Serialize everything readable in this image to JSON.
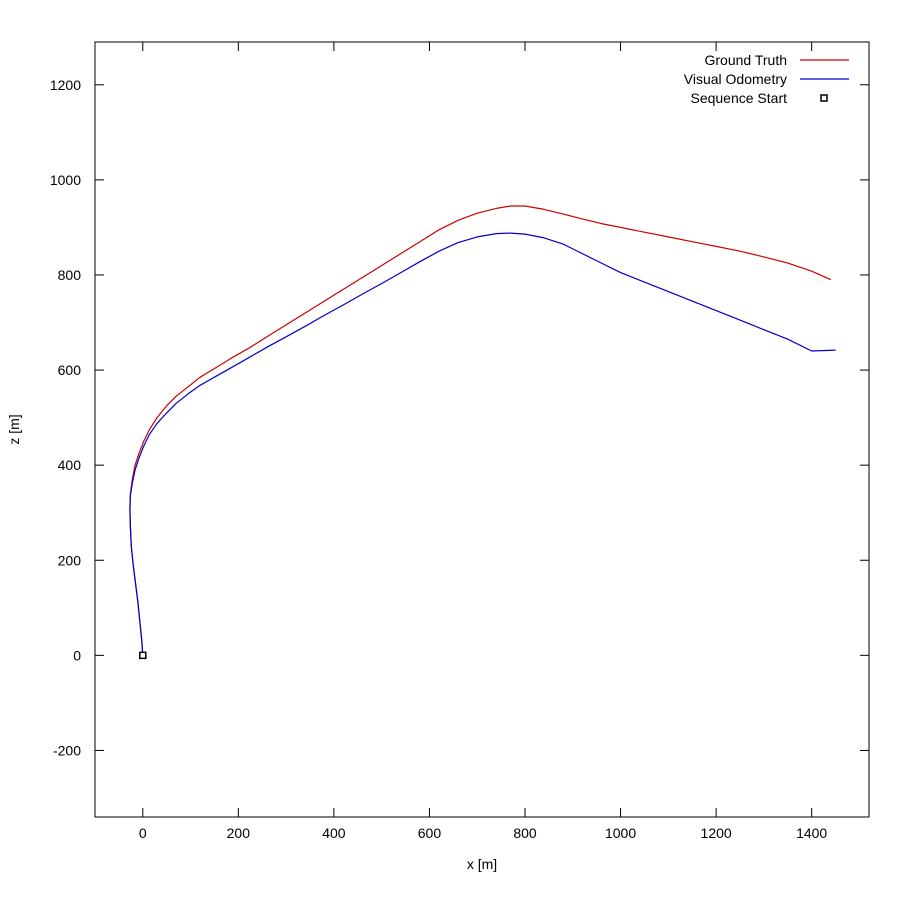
{
  "chart_data": {
    "type": "line",
    "title": "",
    "xlabel": "x [m]",
    "ylabel": "z [m]",
    "xlim": [
      -100,
      1520
    ],
    "ylim": [
      -340,
      1290
    ],
    "x_ticks": [
      0,
      200,
      400,
      600,
      800,
      1000,
      1200,
      1400
    ],
    "y_ticks": [
      -200,
      0,
      200,
      400,
      600,
      800,
      1000,
      1200
    ],
    "grid": false,
    "legend_position": "top-right",
    "series": [
      {
        "name": "Ground Truth",
        "color": "#cc0000",
        "x": [
          0,
          -2,
          -6,
          -10,
          -15,
          -20,
          -24,
          -26,
          -27,
          -26,
          -22,
          -16,
          -8,
          2,
          14,
          30,
          50,
          70,
          95,
          120,
          150,
          185,
          220,
          260,
          300,
          340,
          380,
          420,
          460,
          500,
          540,
          580,
          620,
          660,
          700,
          740,
          770,
          800,
          840,
          880,
          920,
          960,
          1000,
          1050,
          1100,
          1150,
          1200,
          1250,
          1300,
          1350,
          1400,
          1440
        ],
        "y": [
          0,
          30,
          70,
          110,
          150,
          190,
          230,
          270,
          310,
          340,
          370,
          400,
          425,
          450,
          475,
          500,
          525,
          545,
          565,
          585,
          603,
          625,
          645,
          670,
          695,
          720,
          745,
          770,
          795,
          820,
          845,
          870,
          895,
          915,
          930,
          940,
          945,
          945,
          938,
          928,
          918,
          908,
          900,
          890,
          880,
          870,
          860,
          850,
          838,
          825,
          808,
          790
        ]
      },
      {
        "name": "Visual Odometry",
        "color": "#0000cc",
        "x": [
          0,
          -2,
          -6,
          -10,
          -15,
          -20,
          -24,
          -26,
          -27,
          -26,
          -22,
          -16,
          -8,
          2,
          14,
          30,
          50,
          70,
          95,
          120,
          150,
          185,
          220,
          260,
          300,
          340,
          380,
          420,
          460,
          500,
          540,
          580,
          620,
          660,
          700,
          740,
          770,
          800,
          840,
          880,
          920,
          960,
          1000,
          1050,
          1100,
          1150,
          1200,
          1250,
          1300,
          1350,
          1400,
          1450
        ],
        "y": [
          0,
          30,
          70,
          110,
          150,
          190,
          230,
          270,
          305,
          335,
          362,
          390,
          415,
          440,
          465,
          488,
          510,
          530,
          550,
          568,
          585,
          605,
          625,
          648,
          670,
          692,
          715,
          737,
          760,
          782,
          805,
          828,
          850,
          868,
          880,
          887,
          888,
          886,
          878,
          865,
          845,
          825,
          805,
          785,
          765,
          745,
          725,
          705,
          685,
          665,
          640,
          642
        ]
      }
    ],
    "markers": [
      {
        "name": "Sequence Start",
        "x": 0,
        "y": 0,
        "shape": "square"
      }
    ]
  }
}
